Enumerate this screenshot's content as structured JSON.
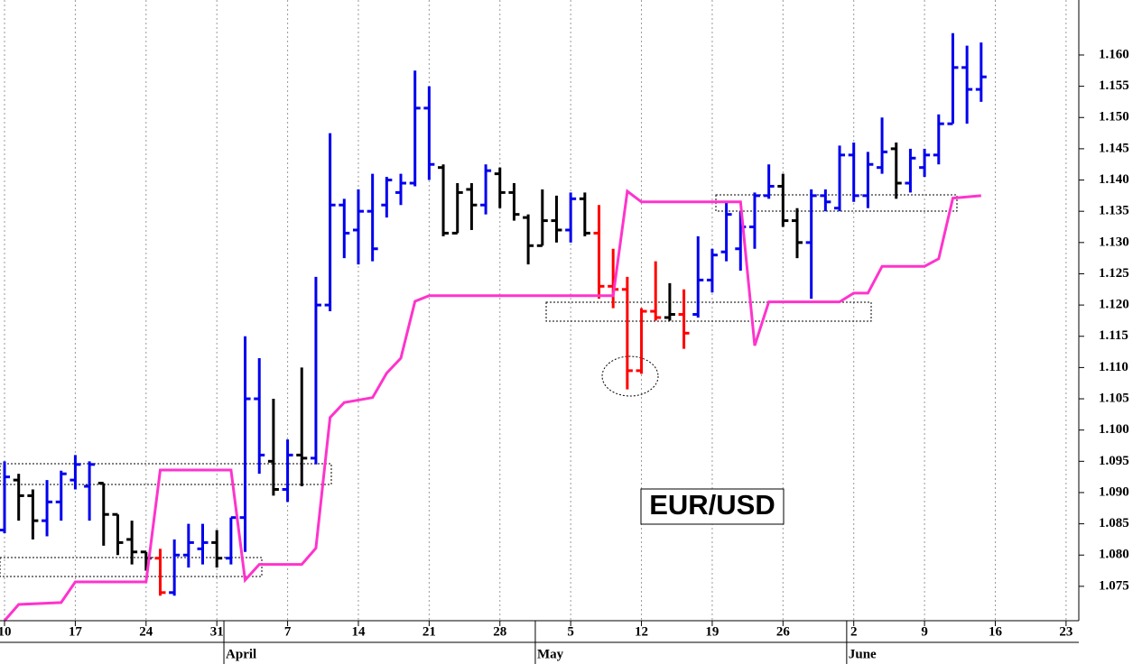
{
  "chart_data": {
    "type": "ohlc",
    "annotation": "EUR/USD",
    "x": [
      0,
      1,
      2,
      3,
      4,
      5,
      6,
      7,
      8,
      9,
      10,
      11,
      12,
      13,
      14,
      15,
      16,
      17,
      18,
      19,
      20,
      21,
      22,
      23,
      24,
      25,
      26,
      27,
      28,
      29,
      30,
      31,
      32,
      33,
      34,
      35,
      36,
      37,
      38,
      39,
      40,
      41,
      42,
      43,
      44,
      45,
      46,
      47,
      48,
      49,
      50,
      51,
      52,
      53,
      54,
      55,
      56,
      57,
      58,
      59,
      60,
      61,
      62,
      63,
      64,
      65,
      66,
      67,
      68,
      69
    ],
    "open": [
      1.084,
      1.092,
      1.0895,
      1.0855,
      1.0885,
      1.092,
      1.091,
      1.0915,
      1.0865,
      1.0825,
      1.0805,
      1.0795,
      1.074,
      1.08,
      1.081,
      1.082,
      1.0795,
      1.086,
      1.105,
      1.095,
      1.0905,
      1.096,
      1.0955,
      1.12,
      1.136,
      1.132,
      1.135,
      1.136,
      1.138,
      1.1395,
      1.1515,
      1.142,
      1.1315,
      1.1385,
      1.136,
      1.141,
      1.138,
      1.134,
      1.1295,
      1.1335,
      1.132,
      1.137,
      1.1315,
      1.123,
      1.1225,
      1.1095,
      1.119,
      1.118,
      1.1185,
      1.1185,
      1.124,
      1.1285,
      1.129,
      1.1325,
      1.1375,
      1.139,
      1.1335,
      1.13,
      1.1375,
      1.1355,
      1.144,
      1.1375,
      1.142,
      1.145,
      1.1395,
      1.142,
      1.144,
      1.149,
      1.158,
      1.1545
    ],
    "high": [
      1.095,
      1.093,
      1.0905,
      1.092,
      1.0935,
      1.096,
      1.095,
      1.0915,
      1.0865,
      1.0855,
      1.0805,
      1.081,
      1.0825,
      1.085,
      1.085,
      1.084,
      1.086,
      1.115,
      1.1115,
      1.105,
      1.0985,
      1.11,
      1.1245,
      1.1475,
      1.137,
      1.1385,
      1.141,
      1.1405,
      1.141,
      1.1575,
      1.155,
      1.1425,
      1.1395,
      1.1395,
      1.1425,
      1.142,
      1.1395,
      1.1345,
      1.1385,
      1.1375,
      1.138,
      1.138,
      1.136,
      1.129,
      1.1245,
      1.1195,
      1.127,
      1.1235,
      1.1225,
      1.131,
      1.129,
      1.1365,
      1.135,
      1.138,
      1.1425,
      1.141,
      1.1355,
      1.1385,
      1.1385,
      1.1455,
      1.146,
      1.1445,
      1.15,
      1.146,
      1.145,
      1.145,
      1.1505,
      1.1635,
      1.1615,
      1.162
    ],
    "low": [
      1.0835,
      1.0855,
      1.0825,
      1.083,
      1.0855,
      1.0905,
      1.0855,
      1.0815,
      1.08,
      1.0785,
      1.0775,
      1.0735,
      1.0735,
      1.078,
      1.0785,
      1.078,
      1.0785,
      1.0805,
      1.093,
      1.0895,
      1.0885,
      1.091,
      1.0945,
      1.119,
      1.1275,
      1.1265,
      1.127,
      1.134,
      1.136,
      1.139,
      1.14,
      1.131,
      1.1315,
      1.132,
      1.1345,
      1.1355,
      1.1335,
      1.1265,
      1.1295,
      1.13,
      1.13,
      1.131,
      1.121,
      1.1195,
      1.1065,
      1.109,
      1.1175,
      1.1175,
      1.113,
      1.118,
      1.122,
      1.127,
      1.1255,
      1.129,
      1.137,
      1.1325,
      1.1275,
      1.121,
      1.135,
      1.135,
      1.1365,
      1.1355,
      1.141,
      1.137,
      1.138,
      1.1405,
      1.1425,
      1.149,
      1.149,
      1.1525
    ],
    "close": [
      1.0925,
      1.0895,
      1.0855,
      1.0885,
      1.093,
      1.0945,
      1.0945,
      1.0865,
      1.082,
      1.0805,
      1.0795,
      1.074,
      1.08,
      1.082,
      1.082,
      1.0795,
      1.086,
      1.105,
      1.096,
      1.0905,
      1.096,
      1.0955,
      1.12,
      1.136,
      1.1315,
      1.135,
      1.129,
      1.14,
      1.1395,
      1.1515,
      1.1425,
      1.1315,
      1.138,
      1.136,
      1.1415,
      1.138,
      1.1345,
      1.1295,
      1.1335,
      1.132,
      1.137,
      1.1315,
      1.123,
      1.1225,
      1.1095,
      1.119,
      1.118,
      1.1185,
      1.1155,
      1.124,
      1.128,
      1.1345,
      1.1325,
      1.1375,
      1.139,
      1.1335,
      1.13,
      1.1375,
      1.1365,
      1.144,
      1.1375,
      1.1425,
      1.1445,
      1.1395,
      1.1435,
      1.144,
      1.149,
      1.158,
      1.1545,
      1.1565
    ],
    "colors": [
      "#0000ee",
      "#000000",
      "#000000",
      "#0000ee",
      "#0000ee",
      "#0000ee",
      "#0000ee",
      "#000000",
      "#000000",
      "#000000",
      "#000000",
      "#ff0000",
      "#0000ee",
      "#0000ee",
      "#0000ee",
      "#000000",
      "#0000ee",
      "#0000ee",
      "#0000ee",
      "#000000",
      "#0000ee",
      "#000000",
      "#0000ee",
      "#0000ee",
      "#0000ee",
      "#0000ee",
      "#0000ee",
      "#0000ee",
      "#0000ee",
      "#0000ee",
      "#0000ee",
      "#000000",
      "#000000",
      "#000000",
      "#0000ee",
      "#000000",
      "#000000",
      "#000000",
      "#000000",
      "#000000",
      "#0000ee",
      "#000000",
      "#ff0000",
      "#ff0000",
      "#ff0000",
      "#ff0000",
      "#ff0000",
      "#000000",
      "#ff0000",
      "#0000ee",
      "#0000ee",
      "#0000ee",
      "#0000ee",
      "#0000ee",
      "#0000ee",
      "#000000",
      "#000000",
      "#0000ee",
      "#0000ee",
      "#0000ee",
      "#0000ee",
      "#0000ee",
      "#0000ee",
      "#000000",
      "#0000ee",
      "#0000ee",
      "#0000ee",
      "#0000ee",
      "#0000ee",
      "#0000ee"
    ],
    "line": {
      "color": "#ff33cc",
      "x": [
        0,
        1,
        4,
        5,
        10,
        11,
        16,
        17,
        18,
        21,
        22,
        23,
        24,
        26,
        27,
        28,
        29,
        30,
        43,
        44,
        45,
        52,
        53,
        54,
        59,
        60,
        61,
        62,
        65,
        66,
        67,
        69
      ],
      "values": [
        1.0695,
        1.0721,
        1.0724,
        1.0757,
        1.0757,
        1.0936,
        1.0936,
        1.076,
        1.0785,
        1.0785,
        1.0811,
        1.102,
        1.1044,
        1.1052,
        1.1091,
        1.1115,
        1.1206,
        1.1215,
        1.1215,
        1.1382,
        1.1365,
        1.1365,
        1.1135,
        1.1205,
        1.1205,
        1.1219,
        1.1219,
        1.1262,
        1.1262,
        1.1274,
        1.1371,
        1.1375
      ]
    },
    "xlim": [
      -0.32,
      75.9
    ],
    "xticks": [
      {
        "value": 0,
        "label": "10"
      },
      {
        "value": 5,
        "label": "17"
      },
      {
        "value": 10,
        "label": "24"
      },
      {
        "value": 15,
        "label": "31"
      },
      {
        "value": 20,
        "label": "7"
      },
      {
        "value": 25,
        "label": "14"
      },
      {
        "value": 30,
        "label": "21"
      },
      {
        "value": 35,
        "label": "28"
      },
      {
        "value": 40,
        "label": "5"
      },
      {
        "value": 45,
        "label": "12"
      },
      {
        "value": 50,
        "label": "19"
      },
      {
        "value": 55,
        "label": "26"
      },
      {
        "value": 60,
        "label": "2"
      },
      {
        "value": 65,
        "label": "9"
      },
      {
        "value": 70,
        "label": "16"
      },
      {
        "value": 75,
        "label": "23"
      }
    ],
    "month_labels": [
      {
        "value": 15.5,
        "label": "April"
      },
      {
        "value": 37.5,
        "label": "May"
      },
      {
        "value": 59.5,
        "label": "June"
      }
    ],
    "ylim": [
      1.0695,
      1.1688
    ],
    "yticks": [
      1.075,
      {
        "value": 1.08,
        "label": "1.080"
      },
      1.085,
      {
        "value": 1.09,
        "label": "1.090"
      },
      1.095,
      {
        "value": 1.1,
        "label": "1.100"
      },
      1.105,
      {
        "value": 1.11,
        "label": "1.110"
      },
      1.115,
      {
        "value": 1.12,
        "label": "1.120"
      },
      1.125,
      {
        "value": 1.13,
        "label": "1.130"
      },
      1.135,
      {
        "value": 1.14,
        "label": "1.140"
      },
      1.145,
      {
        "value": 1.15,
        "label": "1.150"
      },
      1.155,
      {
        "value": 1.16,
        "label": "1.160"
      }
    ],
    "grid": true
  }
}
